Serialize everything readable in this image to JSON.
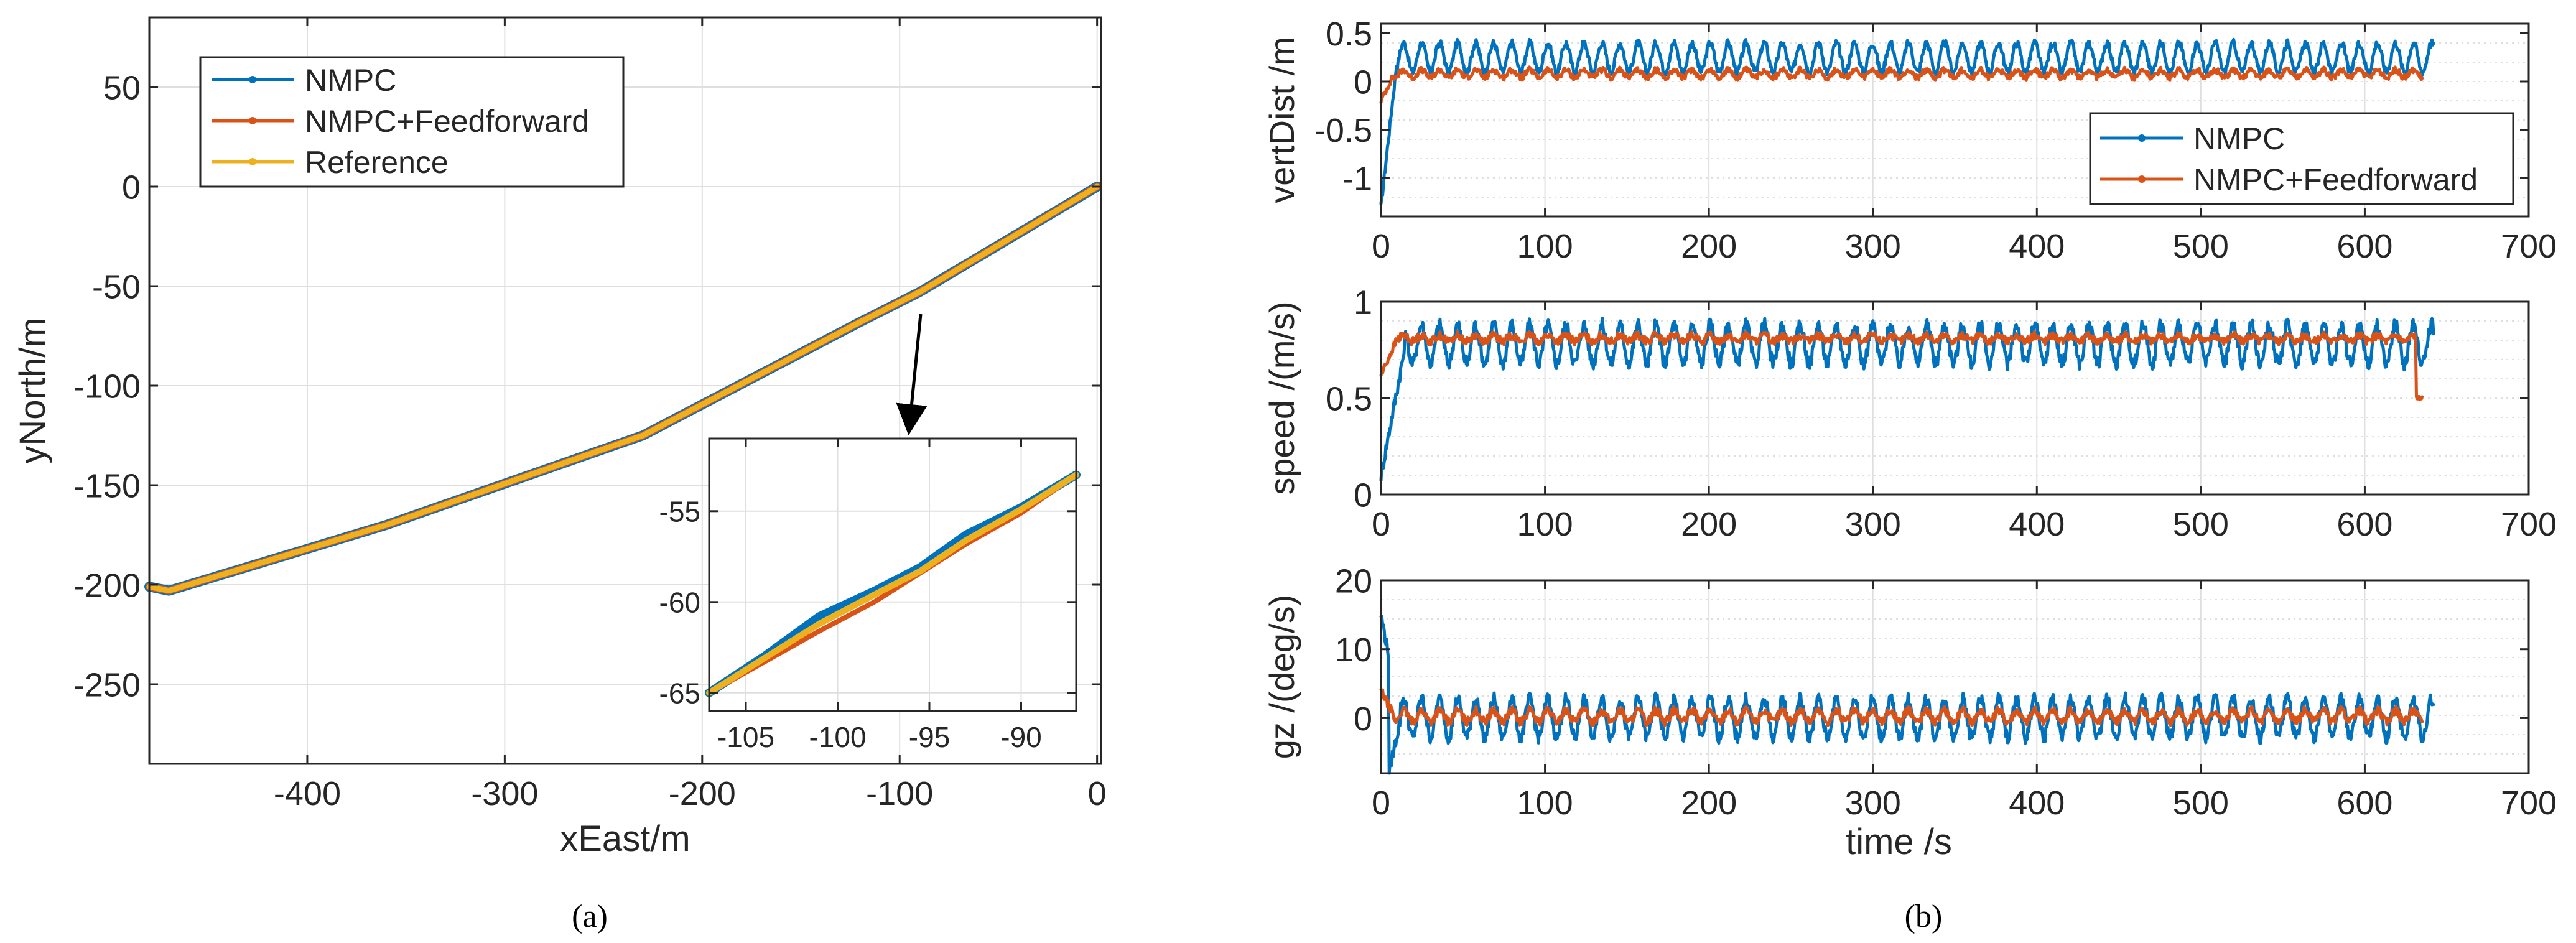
{
  "captions": {
    "a": "(a)",
    "b": "(b)"
  },
  "colors": {
    "nmpc": "#0072BD",
    "ff": "#D95319",
    "ref": "#EDB120",
    "grid": "#dfdfdf",
    "axis": "#262626"
  },
  "chart_data": [
    {
      "id": "trajectory",
      "type": "line",
      "title": "",
      "xlabel": "xEast/m",
      "ylabel": "yNorth/m",
      "xlim": [
        -480,
        2
      ],
      "ylim": [
        -290,
        85
      ],
      "xticks": [
        -400,
        -300,
        -200,
        -100,
        0
      ],
      "xtick_labels": [
        "-400",
        "-300",
        "-200",
        "-100",
        "0"
      ],
      "yticks": [
        50,
        0,
        -50,
        -100,
        -150,
        -200,
        -250
      ],
      "ytick_labels": [
        "50",
        "0",
        "-50",
        "-100",
        "-150",
        "-200",
        "-250"
      ],
      "grid": true,
      "legend": "top-left",
      "series": [
        {
          "name": "NMPC",
          "color": "#0072BD",
          "x": [
            -480,
            -470,
            -360,
            -230,
            -120,
            -90,
            0
          ],
          "y": [
            -201,
            -203,
            -170,
            -125,
            -68,
            -53,
            0
          ]
        },
        {
          "name": "NMPC+Feedforward",
          "color": "#D95319",
          "x": [
            -480,
            -470,
            -360,
            -230,
            -120,
            -90,
            0
          ],
          "y": [
            -201,
            -203,
            -170,
            -125,
            -68,
            -53,
            0
          ]
        },
        {
          "name": "Reference",
          "color": "#EDB120",
          "x": [
            -480,
            -470,
            -360,
            -230,
            -120,
            -90,
            0
          ],
          "y": [
            -201,
            -203,
            -170,
            -125,
            -68,
            -53,
            0
          ]
        }
      ],
      "annotation": "arrow pointing to zoomed inset"
    },
    {
      "id": "trajectory-inset",
      "type": "line",
      "xlim": [
        -107,
        -87
      ],
      "ylim": [
        -66,
        -51
      ],
      "xticks": [
        -105,
        -100,
        -95,
        -90
      ],
      "xtick_labels": [
        "-105",
        "-100",
        "-95",
        "-90"
      ],
      "yticks": [
        -55,
        -60,
        -65
      ],
      "ytick_labels": [
        "-55",
        "-60",
        "-65"
      ],
      "grid": true,
      "series": [
        {
          "name": "NMPC",
          "color": "#0072BD",
          "x": [
            -107,
            -104,
            -101,
            -98,
            -95.5,
            -93,
            -90,
            -87
          ],
          "y": [
            -65,
            -63,
            -60.8,
            -59.4,
            -58.1,
            -56.3,
            -54.8,
            -53
          ]
        },
        {
          "name": "NMPC+Feedforward",
          "color": "#D95319",
          "x": [
            -107,
            -104,
            -101,
            -98,
            -95.5,
            -93,
            -90,
            -87
          ],
          "y": [
            -65,
            -63.3,
            -61.6,
            -60,
            -58.4,
            -56.8,
            -55.1,
            -53
          ]
        },
        {
          "name": "Reference",
          "color": "#EDB120",
          "x": [
            -107,
            -104,
            -101,
            -98,
            -95.5,
            -93,
            -90,
            -87
          ],
          "y": [
            -65,
            -63.1,
            -61.2,
            -59.6,
            -58.3,
            -56.6,
            -54.9,
            -53
          ]
        }
      ]
    },
    {
      "id": "vertdist",
      "type": "line",
      "ylabel": "vertDist /m",
      "xlim": [
        0,
        700
      ],
      "ylim": [
        -1.4,
        0.6
      ],
      "xticks": [
        0,
        100,
        200,
        300,
        400,
        500,
        600,
        700
      ],
      "xtick_labels": [
        "0",
        "100",
        "200",
        "300",
        "400",
        "500",
        "600",
        "700"
      ],
      "yticks": [
        0.5,
        0,
        -0.5,
        -1
      ],
      "ytick_labels": [
        "0.5",
        "0",
        "-0.5",
        "-1"
      ],
      "grid": true,
      "legend": "right",
      "series": [
        {
          "name": "NMPC",
          "color": "#0072BD",
          "t_end": 642,
          "start": -1.3,
          "transient": 10,
          "mean": 0.25,
          "amp": 0.15,
          "period": 11,
          "noise": 0.04
        },
        {
          "name": "NMPC+Feedforward",
          "color": "#D95319",
          "t_end": 635,
          "start": -0.2,
          "transient": 8,
          "mean": 0.08,
          "amp": 0.04,
          "period": 11,
          "noise": 0.03
        }
      ]
    },
    {
      "id": "speed",
      "type": "line",
      "ylabel": "speed /(m/s)",
      "xlim": [
        0,
        700
      ],
      "ylim": [
        0,
        1
      ],
      "xticks": [
        0,
        100,
        200,
        300,
        400,
        500,
        600,
        700
      ],
      "xtick_labels": [
        "0",
        "100",
        "200",
        "300",
        "400",
        "500",
        "600",
        "700"
      ],
      "yticks": [
        1,
        0.5,
        0
      ],
      "ytick_labels": [
        "1",
        "0.5",
        "0"
      ],
      "grid": true,
      "series": [
        {
          "name": "NMPC",
          "color": "#0072BD",
          "t_end": 642,
          "start": 0.1,
          "transient": 15,
          "mean": 0.78,
          "amp": 0.1,
          "period": 11,
          "noise": 0.035
        },
        {
          "name": "NMPC+Feedforward",
          "color": "#D95319",
          "t_end": 635,
          "start": 0.62,
          "transient": 10,
          "mean": 0.81,
          "amp": 0.015,
          "period": 11,
          "noise": 0.02,
          "end_value": 0.5
        }
      ]
    },
    {
      "id": "gz",
      "type": "line",
      "ylabel": "gz /(deg/s)",
      "xlabel": "time /s",
      "xlim": [
        0,
        700
      ],
      "ylim": [
        -8,
        20
      ],
      "xticks": [
        0,
        100,
        200,
        300,
        400,
        500,
        600,
        700
      ],
      "xtick_labels": [
        "0",
        "100",
        "200",
        "300",
        "400",
        "500",
        "600",
        "700"
      ],
      "yticks": [
        20,
        10,
        0
      ],
      "ytick_labels": [
        "20",
        "10",
        "0"
      ],
      "grid": true,
      "series": [
        {
          "name": "NMPC",
          "color": "#0072BD",
          "t_end": 642,
          "start": 15,
          "transient": 12,
          "mean": 0,
          "amp": 2.8,
          "period": 11,
          "noise": 0.9,
          "undershoot": -6
        },
        {
          "name": "NMPC+Feedforward",
          "color": "#D95319",
          "t_end": 635,
          "start": 4,
          "transient": 8,
          "mean": 0.3,
          "amp": 0.8,
          "period": 11,
          "noise": 0.6
        }
      ]
    }
  ]
}
